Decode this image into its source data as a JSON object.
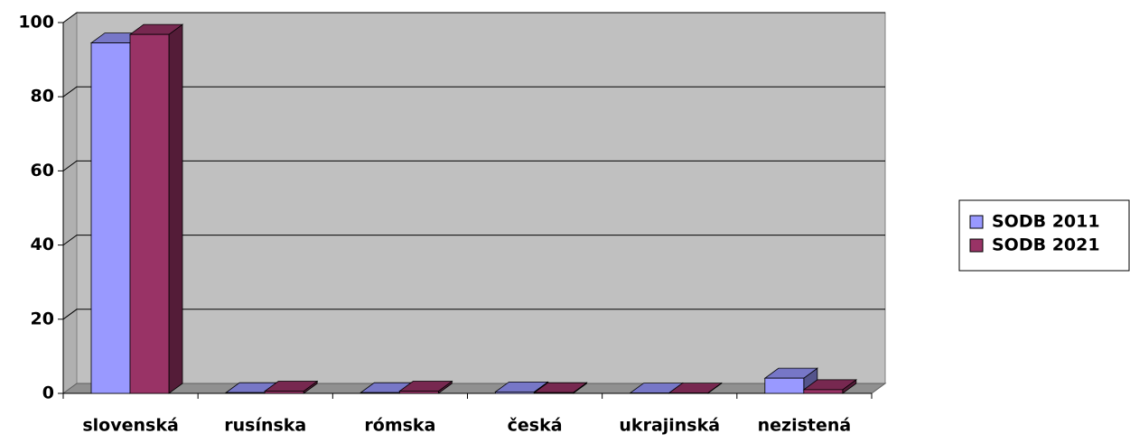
{
  "chart_data": {
    "type": "bar3d",
    "categories": [
      "slovenská",
      "rusínska",
      "rómska",
      "česká",
      "ukrajinská",
      "nezistená"
    ],
    "series": [
      {
        "name": "SODB 2011",
        "color": "#9999ff",
        "values": [
          94.5,
          0.2,
          0.2,
          0.4,
          0.1,
          4.1
        ]
      },
      {
        "name": "SODB 2021",
        "color": "#993366",
        "values": [
          96.8,
          0.6,
          0.6,
          0.2,
          0.1,
          1.0
        ]
      }
    ],
    "ylim": [
      0,
      100
    ],
    "yticks": [
      0,
      20,
      40,
      60,
      80,
      100
    ],
    "grid": true,
    "legend": "right"
  }
}
